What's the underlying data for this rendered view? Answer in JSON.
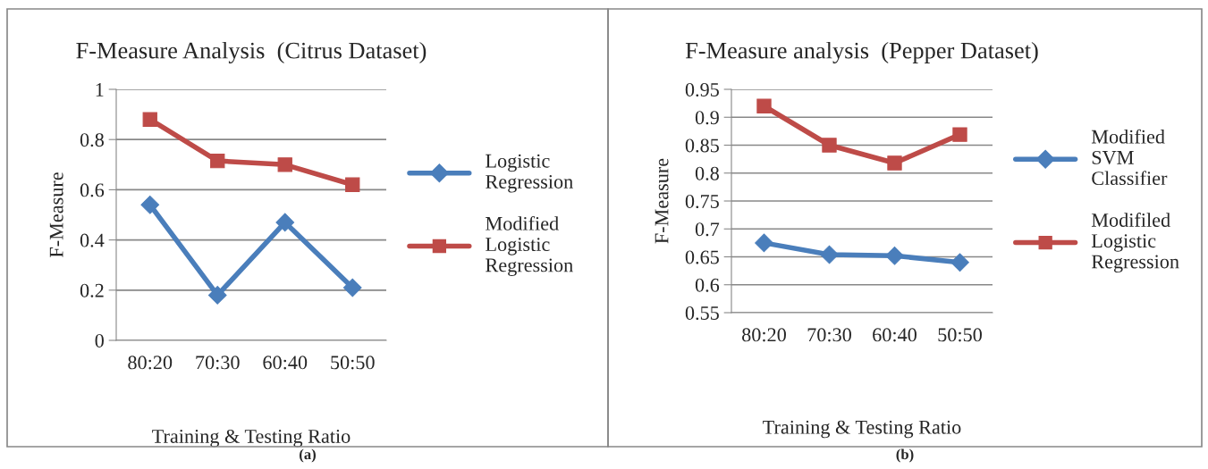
{
  "chart_data": [
    {
      "type": "line",
      "title": "F-Measure Analysis  (Citrus Dataset)",
      "xlabel": "Training & Testing Ratio",
      "ylabel": "F-Measure",
      "categories": [
        "80:20",
        "70:30",
        "60:40",
        "50:50"
      ],
      "series": [
        {
          "name": "Logistic Regression",
          "color": "#4a7ebb",
          "marker": "diamond",
          "values": [
            0.54,
            0.18,
            0.47,
            0.21
          ]
        },
        {
          "name": "Modified Logistic Regression",
          "color": "#be4b48",
          "marker": "square",
          "values": [
            0.88,
            0.715,
            0.7,
            0.62
          ]
        }
      ],
      "ylim": [
        0,
        1
      ],
      "yticks": [
        0,
        0.2,
        0.4,
        0.6,
        0.8,
        1
      ],
      "grid": "y",
      "legend": "right",
      "annotations": [
        "(a)"
      ]
    },
    {
      "type": "line",
      "title": "F-Measure analysis  (Pepper Dataset)",
      "xlabel": "Training & Testing Ratio",
      "ylabel": "F-Measure",
      "categories": [
        "80:20",
        "70:30",
        "60:40",
        "50:50"
      ],
      "series": [
        {
          "name": "Modified SVM Classifier",
          "color": "#4a7ebb",
          "marker": "diamond",
          "values": [
            0.675,
            0.654,
            0.652,
            0.64
          ]
        },
        {
          "name": "Modifiled Logistic Regression",
          "color": "#be4b48",
          "marker": "square",
          "values": [
            0.92,
            0.85,
            0.818,
            0.869
          ]
        }
      ],
      "ylim": [
        0.55,
        0.95
      ],
      "yticks": [
        0.55,
        0.6,
        0.65,
        0.7,
        0.75,
        0.8,
        0.85,
        0.9,
        0.95
      ],
      "grid": "y",
      "legend": "right",
      "annotations": [
        "(b)"
      ]
    }
  ]
}
